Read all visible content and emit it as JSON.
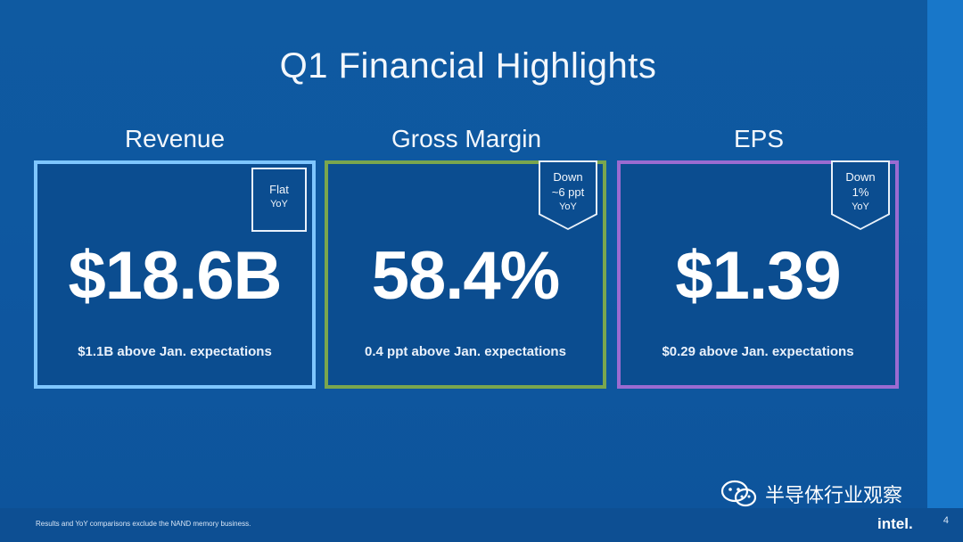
{
  "slide": {
    "title": "Q1 Financial Highlights",
    "footnote": "Results and YoY comparisons exclude the NAND memory business.",
    "page_number": "4",
    "logo_text": "intel.",
    "watermark_text": "半导体行业观察"
  },
  "cards": [
    {
      "title": "Revenue",
      "value": "$18.6B",
      "badge": [
        "Flat",
        "YoY"
      ],
      "note": "$1.1B above Jan. expectations"
    },
    {
      "title": "Gross Margin",
      "value": "58.4%",
      "badge": [
        "Down",
        "~6 ppt",
        "YoY"
      ],
      "note": "0.4 ppt above Jan. expectations"
    },
    {
      "title": "EPS",
      "value": "$1.39",
      "badge": [
        "Down",
        "1%",
        "YoY"
      ],
      "note": "$0.29 above Jan. expectations"
    }
  ],
  "colors": {
    "background": "#0f5ba3",
    "revenue_border": "#7ec6ff",
    "gross_margin_border": "#7aa64e",
    "eps_border": "#9b6bd1"
  }
}
